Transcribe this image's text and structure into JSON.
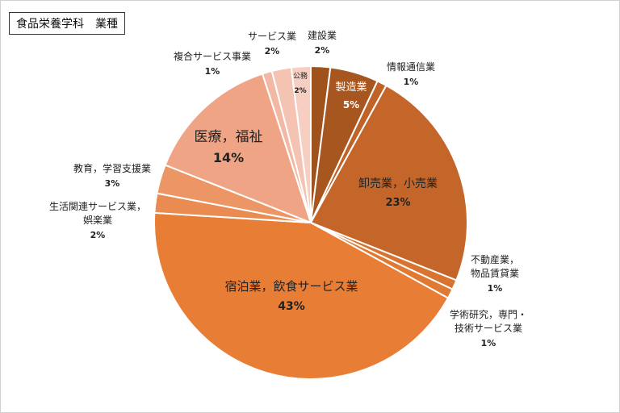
{
  "title": "食品栄養学科　業種",
  "chart_data": {
    "type": "pie",
    "title": "食品栄養学科　業種",
    "slices": [
      {
        "label": [
          "建設業"
        ],
        "value": 2,
        "pct": "2%",
        "color": "#a0521d",
        "label_color": "#222222",
        "label_inside": false
      },
      {
        "label": [
          "製造業"
        ],
        "value": 5,
        "pct": "5%",
        "color": "#a8561f",
        "label_color": "#ffffff",
        "label_inside": true
      },
      {
        "label": [
          "情報通信業"
        ],
        "value": 1,
        "pct": "1%",
        "color": "#c06328",
        "label_color": "#222222",
        "label_inside": false
      },
      {
        "label": [
          "卸売業，小売業"
        ],
        "value": 23,
        "pct": "23%",
        "color": "#c4662a",
        "label_color": "#222222",
        "label_inside": true
      },
      {
        "label": [
          "不動産業，",
          "物品賃貸業"
        ],
        "value": 1,
        "pct": "1%",
        "color": "#d8742f",
        "label_color": "#222222",
        "label_inside": false
      },
      {
        "label": [
          "学術研究，専門・",
          "技術サービス業"
        ],
        "value": 1,
        "pct": "1%",
        "color": "#e07a32",
        "label_color": "#222222",
        "label_inside": false
      },
      {
        "label": [
          "宿泊業，飲食サービス業"
        ],
        "value": 43,
        "pct": "43%",
        "color": "#e87d36",
        "label_color": "#222222",
        "label_inside": true
      },
      {
        "label": [
          "生活関連サービス業，",
          "娯楽業"
        ],
        "value": 2,
        "pct": "2%",
        "color": "#ea8c52",
        "label_color": "#222222",
        "label_inside": false
      },
      {
        "label": [
          "教育，学習支援業"
        ],
        "value": 3,
        "pct": "3%",
        "color": "#eb9664",
        "label_color": "#222222",
        "label_inside": false
      },
      {
        "label": [
          "医療，福祉"
        ],
        "value": 14,
        "pct": "14%",
        "color": "#efa486",
        "label_color": "#222222",
        "label_inside": true
      },
      {
        "label": [
          "複合サービス事業"
        ],
        "value": 1,
        "pct": "1%",
        "color": "#f2b8a3",
        "label_color": "#222222",
        "label_inside": false
      },
      {
        "label": [
          "サービス業"
        ],
        "value": 2,
        "pct": "2%",
        "color": "#f4c3b2",
        "label_color": "#222222",
        "label_inside": false
      },
      {
        "label": [
          "公務"
        ],
        "value": 2,
        "pct": "2%",
        "color": "#f6cfc2",
        "label_color": "#222222",
        "label_inside": true
      }
    ]
  }
}
